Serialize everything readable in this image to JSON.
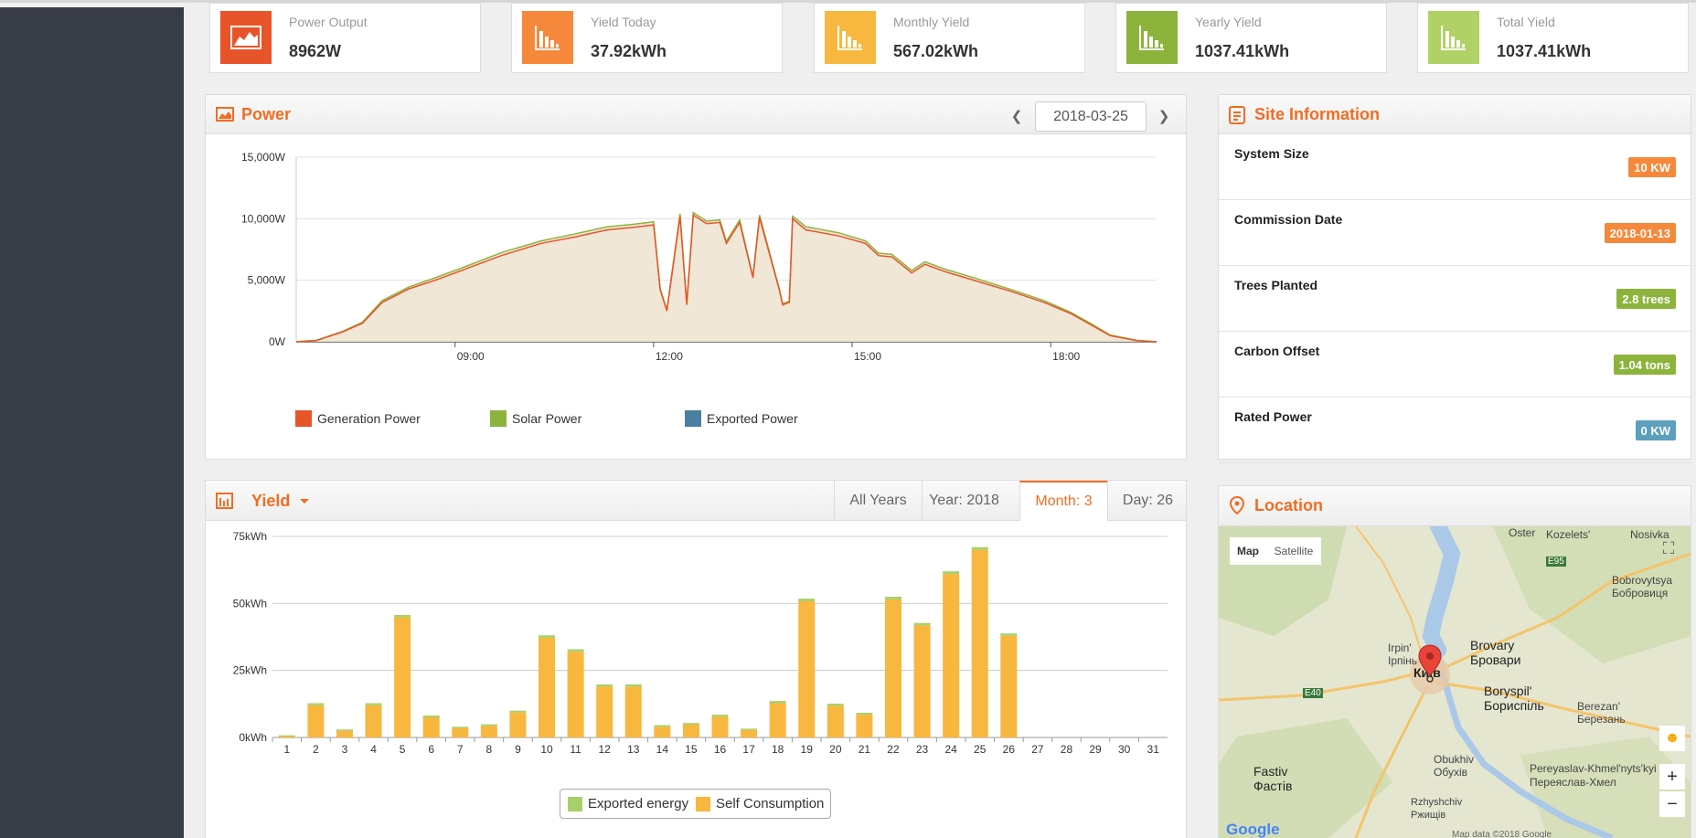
{
  "stats": [
    {
      "label": "Power Output",
      "value": "8962W",
      "color": "#e8542a"
    },
    {
      "label": "Yield Today",
      "value": "37.92kWh",
      "color": "#f6883c"
    },
    {
      "label": "Monthly Yield",
      "value": "567.02kWh",
      "color": "#f8b73e"
    },
    {
      "label": "Yearly Yield",
      "value": "1037.41kWh",
      "color": "#8cb43c"
    },
    {
      "label": "Total Yield",
      "value": "1037.41kWh",
      "color": "#b0d166"
    }
  ],
  "power": {
    "title": "Power",
    "date": "2018-03-25",
    "legend": [
      {
        "label": "Generation Power",
        "color": "#e8542a"
      },
      {
        "label": "Solar Power",
        "color": "#8cb43c"
      },
      {
        "label": "Exported Power",
        "color": "#4b7fa0"
      }
    ]
  },
  "site": {
    "title": "Site Information",
    "rows": [
      {
        "label": "System Size",
        "value": "10 KW",
        "color": "#f6883c"
      },
      {
        "label": "Commission Date",
        "value": "2018-01-13",
        "color": "#f6883c"
      },
      {
        "label": "Trees Planted",
        "value": "2.8 trees",
        "color": "#8cb43c"
      },
      {
        "label": "Carbon Offset",
        "value": "1.04 tons",
        "color": "#8cb43c"
      },
      {
        "label": "Rated Power",
        "value": "0 KW",
        "color": "#5ba0bd"
      }
    ]
  },
  "yield": {
    "title": "Yield",
    "tabs": [
      "All Years",
      "Year: 2018",
      "Month: 3",
      "Day: 26"
    ],
    "active_tab": 2,
    "legend": [
      {
        "label": "Exported energy",
        "color": "#a8d06a"
      },
      {
        "label": "Self Consumption",
        "color": "#f8b73e"
      }
    ]
  },
  "location": {
    "title": "Location",
    "map_button": "Map",
    "satellite_button": "Satellite",
    "labels": [
      "Kozelets'",
      "Oster",
      "Nosivka",
      "Bobrovytsya",
      "Бобровиця",
      "Irpin'",
      "Ірпінь",
      "Brovary",
      "Бровари",
      "Київ",
      "Boryspil'",
      "Бориспіль",
      "Berezan'",
      "Березань",
      "Fastiv",
      "Фастів",
      "Obukhiv",
      "Обухів",
      "Pereyaslav-Khmel'nyts'kyi",
      "Переяслав-Хмел",
      "Rzhyshchiv",
      "Ржищів",
      "E95",
      "E40",
      "Google",
      "Map data ©2018 Google"
    ]
  },
  "chart_data": [
    {
      "type": "area",
      "title": "Power",
      "x_ticks": [
        "09:00",
        "12:00",
        "15:00",
        "18:00"
      ],
      "y_ticks": [
        "15,000W",
        "10,000W",
        "5,000W",
        "0W"
      ],
      "ylim": [
        0,
        15000
      ],
      "xlim_hours": [
        6.6,
        19.6
      ],
      "series": [
        {
          "name": "Generation Power",
          "color": "#e8542a",
          "points": [
            [
              6.6,
              0
            ],
            [
              6.9,
              100
            ],
            [
              7.3,
              800
            ],
            [
              7.6,
              1500
            ],
            [
              7.9,
              3200
            ],
            [
              8.3,
              4300
            ],
            [
              8.7,
              5000
            ],
            [
              9.2,
              6000
            ],
            [
              9.7,
              7000
            ],
            [
              10.3,
              8000
            ],
            [
              10.8,
              8500
            ],
            [
              11.3,
              9100
            ],
            [
              11.7,
              9300
            ],
            [
              12.0,
              9500
            ],
            [
              12.1,
              4200
            ],
            [
              12.2,
              2500
            ],
            [
              12.4,
              10200
            ],
            [
              12.5,
              3000
            ],
            [
              12.6,
              10300
            ],
            [
              12.8,
              9600
            ],
            [
              13.0,
              9700
            ],
            [
              13.1,
              8000
            ],
            [
              13.3,
              9700
            ],
            [
              13.5,
              5200
            ],
            [
              13.6,
              10100
            ],
            [
              13.9,
              4200
            ],
            [
              13.95,
              3000
            ],
            [
              14.05,
              3200
            ],
            [
              14.1,
              10000
            ],
            [
              14.3,
              9100
            ],
            [
              14.8,
              8600
            ],
            [
              15.2,
              8000
            ],
            [
              15.4,
              7000
            ],
            [
              15.6,
              6900
            ],
            [
              15.9,
              5600
            ],
            [
              16.1,
              6300
            ],
            [
              16.4,
              5700
            ],
            [
              16.9,
              4900
            ],
            [
              17.4,
              4100
            ],
            [
              17.9,
              3200
            ],
            [
              18.3,
              2300
            ],
            [
              18.6,
              1400
            ],
            [
              18.9,
              500
            ],
            [
              19.3,
              100
            ],
            [
              19.6,
              0
            ]
          ]
        },
        {
          "name": "Solar Power",
          "color": "#8cb43c",
          "points": [
            [
              6.6,
              0
            ],
            [
              6.9,
              120
            ],
            [
              7.3,
              850
            ],
            [
              7.6,
              1600
            ],
            [
              7.9,
              3350
            ],
            [
              8.3,
              4450
            ],
            [
              8.7,
              5200
            ],
            [
              9.2,
              6200
            ],
            [
              9.7,
              7250
            ],
            [
              10.3,
              8200
            ],
            [
              10.8,
              8750
            ],
            [
              11.3,
              9350
            ],
            [
              11.7,
              9550
            ],
            [
              12.0,
              9750
            ],
            [
              12.1,
              4300
            ],
            [
              12.2,
              2600
            ],
            [
              12.4,
              10400
            ],
            [
              12.5,
              3100
            ],
            [
              12.6,
              10500
            ],
            [
              12.8,
              9800
            ],
            [
              13.0,
              9900
            ],
            [
              13.1,
              8150
            ],
            [
              13.3,
              9900
            ],
            [
              13.5,
              5300
            ],
            [
              13.6,
              10300
            ],
            [
              13.9,
              4300
            ],
            [
              13.95,
              3100
            ],
            [
              14.05,
              3300
            ],
            [
              14.1,
              10200
            ],
            [
              14.3,
              9350
            ],
            [
              14.8,
              8850
            ],
            [
              15.2,
              8200
            ],
            [
              15.4,
              7200
            ],
            [
              15.6,
              7100
            ],
            [
              15.9,
              5800
            ],
            [
              16.1,
              6500
            ],
            [
              16.4,
              5900
            ],
            [
              16.9,
              5100
            ],
            [
              17.4,
              4250
            ],
            [
              17.9,
              3350
            ],
            [
              18.3,
              2400
            ],
            [
              18.6,
              1500
            ],
            [
              18.9,
              550
            ],
            [
              19.3,
              120
            ],
            [
              19.6,
              0
            ]
          ]
        },
        {
          "name": "Exported Power",
          "color": "#4b7fa0",
          "points": []
        }
      ]
    },
    {
      "type": "bar",
      "title": "Yield",
      "categories": [
        "1",
        "2",
        "3",
        "4",
        "5",
        "6",
        "7",
        "8",
        "9",
        "10",
        "11",
        "12",
        "13",
        "14",
        "15",
        "16",
        "17",
        "18",
        "19",
        "20",
        "21",
        "22",
        "23",
        "24",
        "25",
        "26",
        "27",
        "28",
        "29",
        "30",
        "31"
      ],
      "y_ticks": [
        "75kWh",
        "50kWh",
        "25kWh",
        "0kWh"
      ],
      "ylim": [
        0,
        75
      ],
      "series": [
        {
          "name": "Self Consumption",
          "color": "#f8b73e",
          "values": [
            0.5,
            12,
            2.5,
            12,
            44.8,
            7.5,
            3.5,
            4.3,
            9.3,
            37.2,
            32,
            19,
            19,
            4,
            4.8,
            7.8,
            2.8,
            12.8,
            50.8,
            11.8,
            8.5,
            51.5,
            41.8,
            61,
            70,
            37.9,
            0,
            0,
            0,
            0,
            0
          ]
        },
        {
          "name": "Exported energy",
          "color": "#a8d06a",
          "values": [
            0.3,
            0.8,
            0.5,
            0.8,
            0.9,
            0.7,
            0.5,
            0.6,
            0.7,
            0.9,
            0.9,
            0.8,
            0.8,
            0.6,
            0.6,
            0.7,
            0.5,
            0.8,
            1.0,
            0.8,
            0.7,
            1.0,
            0.9,
            1.0,
            1.0,
            0.9,
            0,
            0,
            0,
            0,
            0
          ]
        }
      ]
    }
  ]
}
